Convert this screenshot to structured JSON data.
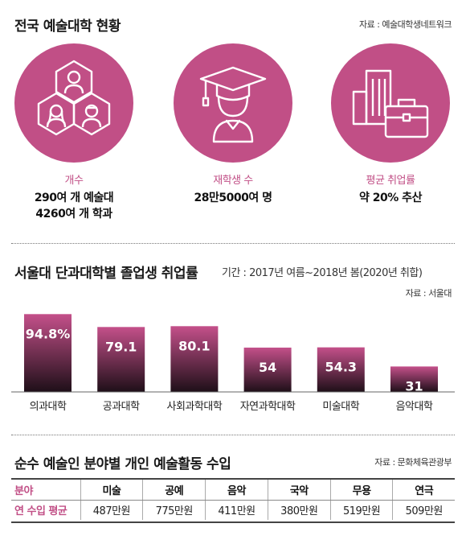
{
  "section1": {
    "title": "전국 예술대학 현황",
    "source": "자료 : 예술대학생네트워크",
    "stats": [
      {
        "label": "개수",
        "value_lines": [
          "290여 개 예술대",
          "4260여 개 학과"
        ],
        "icon": "people-hexagon-icon"
      },
      {
        "label": "재학생 수",
        "value_lines": [
          "28만5000여 명"
        ],
        "icon": "graduate-icon"
      },
      {
        "label": "평균 취업률",
        "value_lines": [
          "약 20% 추산"
        ],
        "icon": "briefcase-building-icon"
      }
    ]
  },
  "section2": {
    "title": "서울대 단과대학별 졸업생 취업률",
    "subtitle": "기간 : 2017년 여름~2018년 봄(2020년 취합)",
    "source": "자료 : 서울대"
  },
  "chart_data": {
    "type": "bar",
    "title": "서울대 단과대학별 졸업생 취업률",
    "categories": [
      "의과대학",
      "공과대학",
      "사회과학대학",
      "자연과학대학",
      "미술대학",
      "음악대학"
    ],
    "values": [
      94.8,
      79.1,
      80.1,
      54,
      54.3,
      31
    ],
    "value_labels": [
      "94.8%",
      "79.1",
      "80.1",
      "54",
      "54.3",
      "31"
    ],
    "ylim": [
      0,
      100
    ],
    "grid": false,
    "legend": "none",
    "bar_color_top": "#c4508a",
    "bar_color_bottom": "#1e0f18"
  },
  "section3": {
    "title": "순수 예술인 분야별 개인 예술활동 수입",
    "source": "자료 : 문화체육관광부",
    "header_label": "분야",
    "row_label": "연 수입 평균",
    "columns": [
      "미술",
      "공예",
      "음악",
      "국악",
      "무용",
      "연극"
    ],
    "values": [
      "487만원",
      "775만원",
      "411만원",
      "380만원",
      "519만원",
      "509만원"
    ]
  },
  "colors": {
    "accent": "#c14f86"
  }
}
